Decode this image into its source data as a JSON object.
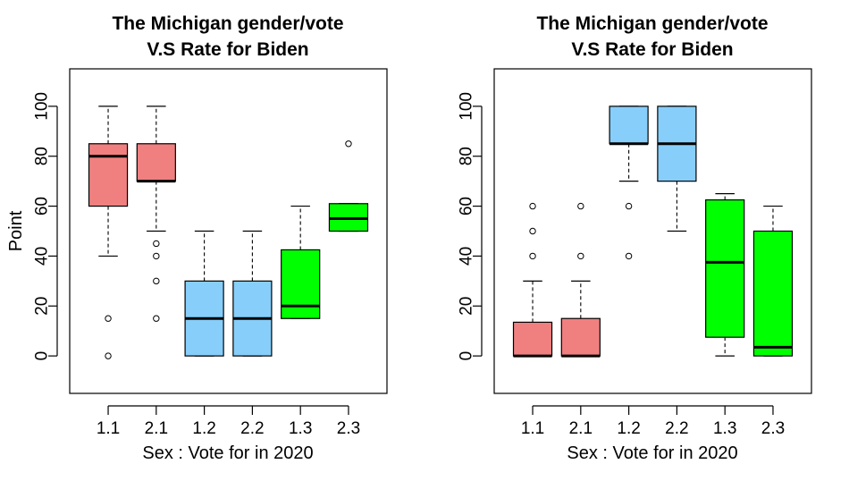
{
  "chart_data": [
    {
      "type": "boxplot",
      "title_lines": [
        "The Michigan gender/vote",
        "V.S Rate for Biden"
      ],
      "xlabel": "Sex : Vote for in 2020",
      "ylabel": "Point",
      "ylim": [
        -15,
        115
      ],
      "yticks": [
        0,
        20,
        40,
        60,
        80,
        100
      ],
      "categories": [
        "1.1",
        "2.1",
        "1.2",
        "2.2",
        "1.3",
        "2.3"
      ],
      "boxes": [
        {
          "category": "1.1",
          "color": "#F08080",
          "whisker_low": 40,
          "q1": 60,
          "median": 80,
          "q3": 85,
          "whisker_high": 100,
          "outliers": [
            15,
            0
          ]
        },
        {
          "category": "2.1",
          "color": "#F08080",
          "whisker_low": 50,
          "q1": 70,
          "median": 70,
          "q3": 85,
          "whisker_high": 100,
          "outliers": [
            45,
            40,
            30,
            15
          ]
        },
        {
          "category": "1.2",
          "color": "#87CEFA",
          "whisker_low": 0,
          "q1": 0,
          "median": 15,
          "q3": 30,
          "whisker_high": 50,
          "outliers": []
        },
        {
          "category": "2.2",
          "color": "#87CEFA",
          "whisker_low": 0,
          "q1": 0,
          "median": 15,
          "q3": 30,
          "whisker_high": 50,
          "outliers": []
        },
        {
          "category": "1.3",
          "color": "#00FF00",
          "whisker_low": 15,
          "q1": 15,
          "median": 20,
          "q3": 42.5,
          "whisker_high": 60,
          "outliers": []
        },
        {
          "category": "2.3",
          "color": "#00FF00",
          "whisker_low": 50,
          "q1": 50,
          "median": 55,
          "q3": 61,
          "whisker_high": 61,
          "outliers": [
            85
          ]
        }
      ]
    },
    {
      "type": "boxplot",
      "title_lines": [
        "The Michigan gender/vote",
        "V.S Rate for Biden"
      ],
      "xlabel": "Sex : Vote for in 2020",
      "ylabel": "",
      "ylim": [
        -15,
        115
      ],
      "yticks": [
        0,
        20,
        40,
        60,
        80,
        100
      ],
      "categories": [
        "1.1",
        "2.1",
        "1.2",
        "2.2",
        "1.3",
        "2.3"
      ],
      "boxes": [
        {
          "category": "1.1",
          "color": "#F08080",
          "whisker_low": 0,
          "q1": 0,
          "median": 0,
          "q3": 13.5,
          "whisker_high": 30,
          "outliers": [
            60,
            50,
            40
          ]
        },
        {
          "category": "2.1",
          "color": "#F08080",
          "whisker_low": 0,
          "q1": 0,
          "median": 0,
          "q3": 15,
          "whisker_high": 30,
          "outliers": [
            60,
            40
          ]
        },
        {
          "category": "1.2",
          "color": "#87CEFA",
          "whisker_low": 70,
          "q1": 85,
          "median": 85,
          "q3": 100,
          "whisker_high": 100,
          "outliers": [
            60,
            40
          ]
        },
        {
          "category": "2.2",
          "color": "#87CEFA",
          "whisker_low": 50,
          "q1": 70,
          "median": 85,
          "q3": 100,
          "whisker_high": 100,
          "outliers": []
        },
        {
          "category": "1.3",
          "color": "#00FF00",
          "whisker_low": 0,
          "q1": 7.5,
          "median": 37.5,
          "q3": 62.5,
          "whisker_high": 65,
          "outliers": []
        },
        {
          "category": "2.3",
          "color": "#00FF00",
          "whisker_low": 0,
          "q1": 0,
          "median": 3.5,
          "q3": 50,
          "whisker_high": 60,
          "outliers": []
        }
      ]
    }
  ]
}
